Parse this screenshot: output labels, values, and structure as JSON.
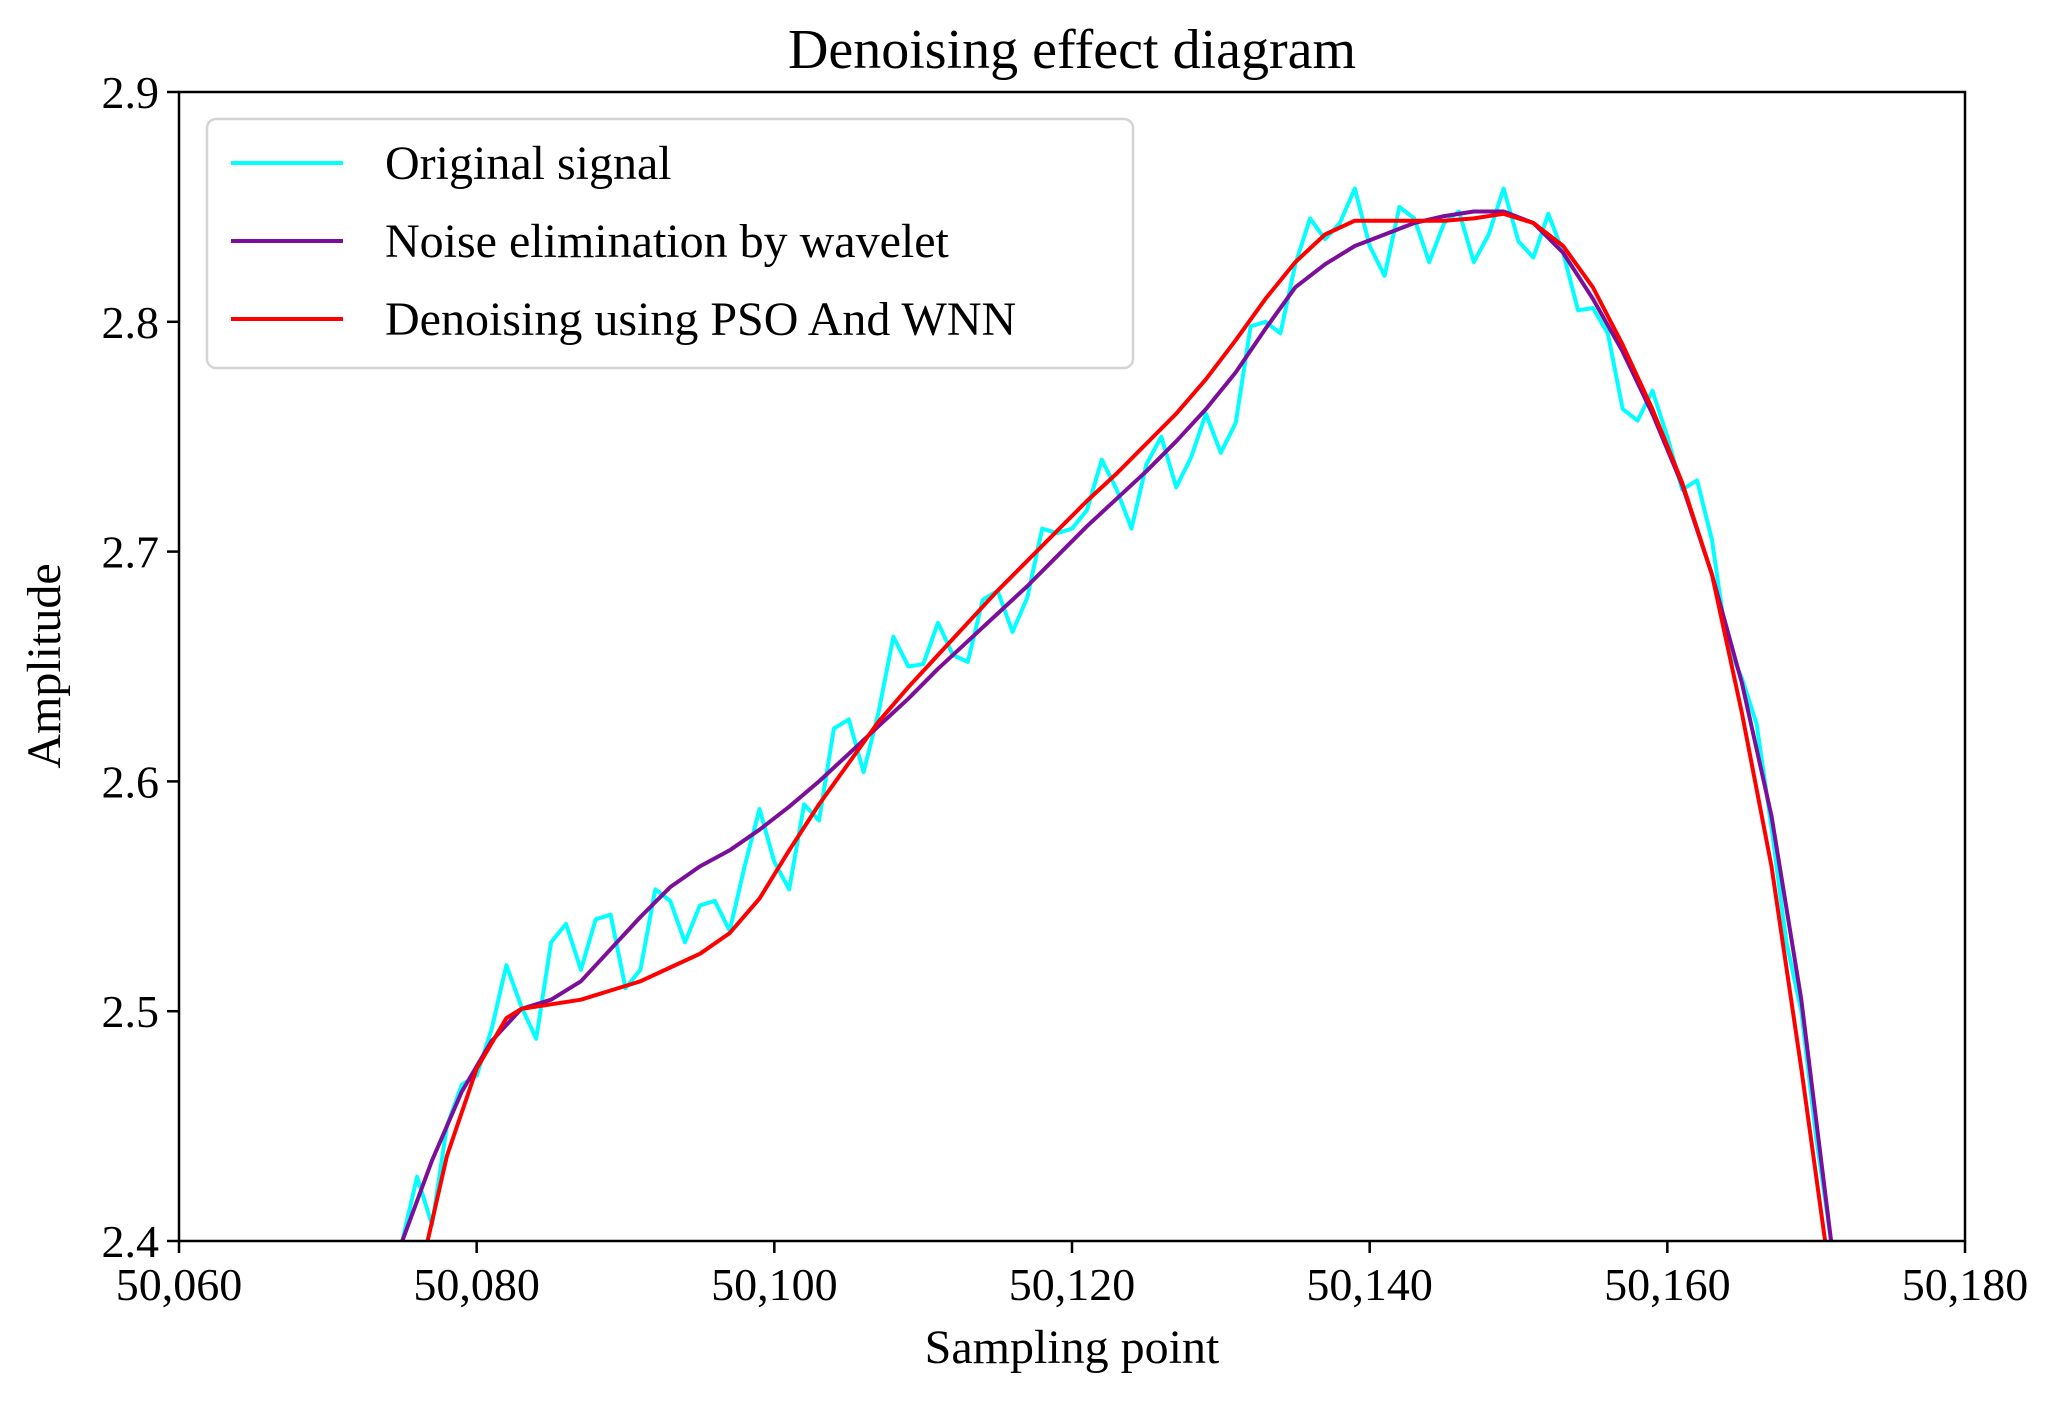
{
  "chart_data": {
    "type": "line",
    "title": "Denoising effect diagram",
    "xlabel": "Sampling point",
    "ylabel": "Amplitude",
    "xlim": [
      50060,
      50180
    ],
    "ylim": [
      2.4,
      2.9
    ],
    "xticks": [
      50060,
      50080,
      50100,
      50120,
      50140,
      50160,
      50180
    ],
    "xtick_labels": [
      "50,060",
      "50,080",
      "50,100",
      "50,120",
      "50,140",
      "50,160",
      "50,180"
    ],
    "yticks": [
      2.4,
      2.5,
      2.6,
      2.7,
      2.8,
      2.9
    ],
    "ytick_labels": [
      "2.4",
      "2.5",
      "2.6",
      "2.7",
      "2.8",
      "2.9"
    ],
    "grid": false,
    "legend_position": "top-left",
    "series": [
      {
        "name": "Original signal",
        "color": "#00FFFF",
        "x": [
          50075,
          50076,
          50077,
          50078,
          50079,
          50080,
          50081,
          50082,
          50083,
          50084,
          50085,
          50086,
          50087,
          50088,
          50089,
          50090,
          50091,
          50092,
          50093,
          50094,
          50095,
          50096,
          50097,
          50098,
          50099,
          50100,
          50101,
          50102,
          50103,
          50104,
          50105,
          50106,
          50107,
          50108,
          50109,
          50110,
          50111,
          50112,
          50113,
          50114,
          50115,
          50116,
          50117,
          50118,
          50119,
          50120,
          50121,
          50122,
          50123,
          50124,
          50125,
          50126,
          50127,
          50128,
          50129,
          50130,
          50131,
          50132,
          50133,
          50134,
          50135,
          50136,
          50137,
          50138,
          50139,
          50140,
          50141,
          50142,
          50143,
          50144,
          50145,
          50146,
          50147,
          50148,
          50149,
          50150,
          50151,
          50152,
          50153,
          50154,
          50155,
          50156,
          50157,
          50158,
          50159,
          50160,
          50161,
          50162,
          50163,
          50164,
          50165,
          50166,
          50167,
          50168,
          50169,
          50170,
          50171
        ],
        "y": [
          2.4,
          2.428,
          2.407,
          2.45,
          2.468,
          2.472,
          2.492,
          2.52,
          2.502,
          2.488,
          2.53,
          2.538,
          2.518,
          2.54,
          2.542,
          2.51,
          2.518,
          2.553,
          2.548,
          2.53,
          2.546,
          2.548,
          2.535,
          2.563,
          2.588,
          2.565,
          2.553,
          2.59,
          2.583,
          2.623,
          2.627,
          2.604,
          2.63,
          2.663,
          2.65,
          2.651,
          2.669,
          2.655,
          2.652,
          2.679,
          2.683,
          2.665,
          2.68,
          2.71,
          2.708,
          2.71,
          2.718,
          2.74,
          2.727,
          2.71,
          2.738,
          2.75,
          2.728,
          2.741,
          2.76,
          2.743,
          2.756,
          2.798,
          2.8,
          2.795,
          2.825,
          2.845,
          2.836,
          2.843,
          2.858,
          2.833,
          2.82,
          2.85,
          2.845,
          2.826,
          2.843,
          2.848,
          2.826,
          2.838,
          2.858,
          2.835,
          2.828,
          2.847,
          2.83,
          2.805,
          2.806,
          2.795,
          2.762,
          2.757,
          2.77,
          2.75,
          2.727,
          2.731,
          2.705,
          2.66,
          2.645,
          2.625,
          2.58,
          2.53,
          2.5,
          2.445,
          2.4
        ]
      },
      {
        "name": "Noise elimination by wavelet",
        "color": "#7B0F99",
        "x": [
          50075,
          50077,
          50079,
          50081,
          50083,
          50085,
          50087,
          50089,
          50091,
          50093,
          50095,
          50097,
          50099,
          50101,
          50103,
          50105,
          50107,
          50109,
          50111,
          50113,
          50115,
          50117,
          50119,
          50121,
          50123,
          50125,
          50127,
          50129,
          50131,
          50133,
          50135,
          50137,
          50139,
          50141,
          50143,
          50145,
          50147,
          50149,
          50151,
          50153,
          50155,
          50157,
          50159,
          50161,
          50163,
          50165,
          50167,
          50169,
          50171
        ],
        "y": [
          2.4,
          2.435,
          2.465,
          2.487,
          2.501,
          2.505,
          2.513,
          2.527,
          2.541,
          2.554,
          2.563,
          2.57,
          2.579,
          2.589,
          2.6,
          2.612,
          2.624,
          2.636,
          2.649,
          2.661,
          2.673,
          2.685,
          2.698,
          2.711,
          2.723,
          2.735,
          2.748,
          2.762,
          2.778,
          2.797,
          2.815,
          2.825,
          2.833,
          2.838,
          2.843,
          2.846,
          2.848,
          2.848,
          2.843,
          2.83,
          2.81,
          2.787,
          2.76,
          2.729,
          2.69,
          2.643,
          2.585,
          2.505,
          2.4
        ]
      },
      {
        "name": "Denoising using PSO And WNN",
        "color": "#FF0000",
        "x": [
          50076.7,
          50078,
          50080,
          50082,
          50083,
          50085,
          50087,
          50089,
          50091,
          50093,
          50095,
          50097,
          50099,
          50101,
          50103,
          50105,
          50107,
          50109,
          50111,
          50113,
          50115,
          50117,
          50119,
          50121,
          50123,
          50125,
          50127,
          50129,
          50131,
          50133,
          50135,
          50137,
          50139,
          50141,
          50143,
          50145,
          50147,
          50149,
          50151,
          50153,
          50155,
          50157,
          50159,
          50161,
          50163,
          50165,
          50167,
          50169,
          50170.6
        ],
        "y": [
          2.4,
          2.437,
          2.475,
          2.497,
          2.501,
          2.503,
          2.505,
          2.509,
          2.513,
          2.519,
          2.525,
          2.534,
          2.549,
          2.57,
          2.59,
          2.608,
          2.626,
          2.641,
          2.655,
          2.669,
          2.683,
          2.696,
          2.709,
          2.722,
          2.734,
          2.747,
          2.76,
          2.775,
          2.792,
          2.81,
          2.826,
          2.838,
          2.844,
          2.844,
          2.844,
          2.844,
          2.845,
          2.847,
          2.843,
          2.833,
          2.815,
          2.79,
          2.762,
          2.73,
          2.69,
          2.63,
          2.563,
          2.475,
          2.4
        ]
      }
    ]
  }
}
